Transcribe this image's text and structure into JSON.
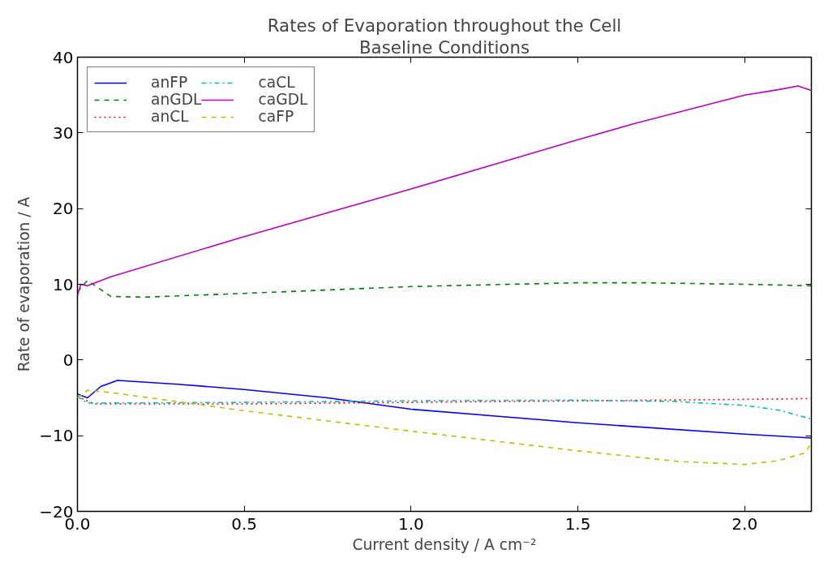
{
  "chart_data": {
    "type": "line",
    "title": "Rates of Evaporation throughout the Cell",
    "subtitle": "Baseline Conditions",
    "xlabel": "Current density / A cm⁻²",
    "ylabel": "Rate of evaporation / A",
    "xlim": [
      0,
      2.2
    ],
    "ylim": [
      -20,
      40
    ],
    "xticks": [
      {
        "value": 0,
        "label": "0.0"
      },
      {
        "value": 0.5,
        "label": "0.5"
      },
      {
        "value": 1,
        "label": "1.0"
      },
      {
        "value": 1.5,
        "label": "1.5"
      },
      {
        "value": 2,
        "label": "2.0"
      }
    ],
    "yticks": [
      {
        "value": -20,
        "label": "−20"
      },
      {
        "value": -10,
        "label": "−10"
      },
      0,
      10,
      20,
      30,
      40
    ],
    "grid": false,
    "legend": "top left",
    "series": [
      {
        "name": "anFP",
        "color": "#0000ff",
        "line_style": "solid",
        "x": [
          0,
          0.03,
          0.07,
          0.12,
          0.3,
          0.5,
          0.75,
          1.0,
          1.5,
          2.0,
          2.2
        ],
        "values": [
          -4.5,
          -5.0,
          -3.5,
          -2.7,
          -3.2,
          -3.9,
          -5.0,
          -6.5,
          -8.3,
          -9.8,
          -10.3
        ]
      },
      {
        "name": "anGDL",
        "color": "#008000",
        "line_style": "dashed",
        "x": [
          0,
          0.03,
          0.1,
          0.2,
          0.5,
          1.0,
          1.5,
          1.7,
          2.0,
          2.2
        ],
        "values": [
          9,
          10.5,
          8.4,
          8.3,
          8.8,
          9.7,
          10.2,
          10.2,
          10.0,
          9.8
        ]
      },
      {
        "name": "anCL",
        "color": "#ff0000",
        "line_style": "dotted",
        "x": [
          0,
          0.05,
          0.5,
          1.0,
          1.5,
          2.0,
          2.2
        ],
        "values": [
          -4.8,
          -5.8,
          -5.8,
          -5.6,
          -5.4,
          -5.2,
          -5.1
        ]
      },
      {
        "name": "caCL",
        "color": "#00bfbf",
        "line_style": "dashdot",
        "x": [
          0,
          0.03,
          0.5,
          1.0,
          1.5,
          1.8,
          2.0,
          2.1,
          2.2
        ],
        "values": [
          -4.8,
          -5.7,
          -5.6,
          -5.4,
          -5.3,
          -5.5,
          -6.0,
          -6.6,
          -7.8
        ]
      },
      {
        "name": "caGDL",
        "color": "#bf00bf",
        "line_style": "solid",
        "x": [
          0,
          0.01,
          0.03,
          0.1,
          0.5,
          1.0,
          1.5,
          1.675,
          2.0,
          2.1,
          2.16,
          2.2
        ],
        "values": [
          8.5,
          10,
          9.8,
          11,
          16.3,
          22.6,
          29.1,
          31.3,
          35.0,
          35.7,
          36.2,
          35.6
        ]
      },
      {
        "name": "caFP",
        "color": "#bfbf00",
        "line_style": "dashed",
        "x": [
          0,
          0.03,
          0.1,
          0.3,
          0.5,
          1.0,
          1.5,
          1.8,
          2.0,
          2.1,
          2.18,
          2.2
        ],
        "values": [
          -5.0,
          -4.0,
          -4.3,
          -5.5,
          -6.7,
          -9.4,
          -12.0,
          -13.4,
          -13.8,
          -13.3,
          -12.3,
          -11.0
        ]
      }
    ]
  }
}
